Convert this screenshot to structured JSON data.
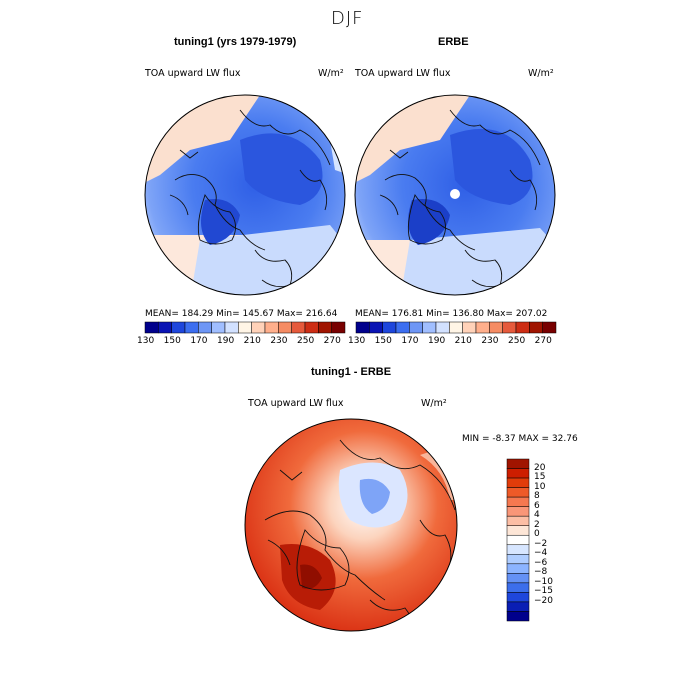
{
  "figure": {
    "title": "DJF"
  },
  "panels": [
    {
      "heading": "tuning1 (yrs 1979-1979)",
      "variable": "TOA upward LW flux",
      "units": "W/m²",
      "stats": "MEAN= 184.29     Min= 145.67     Max= 216.64"
    },
    {
      "heading": "ERBE",
      "variable": "TOA upward LW flux",
      "units": "W/m²",
      "stats": "MEAN= 176.81     Min= 136.80     Max= 207.02"
    }
  ],
  "main_colorbar": {
    "labels": [
      "130",
      "150",
      "170",
      "190",
      "210",
      "230",
      "250",
      "270"
    ],
    "colors": [
      "#00008c",
      "#0a14b4",
      "#1e46dc",
      "#3c6ef0",
      "#6e96f5",
      "#a0beff",
      "#d2e1ff",
      "#fff5e6",
      "#ffd2b9",
      "#ffaf8c",
      "#f58c64",
      "#e65a3c",
      "#cd2d14",
      "#a01400",
      "#780000"
    ]
  },
  "difference": {
    "heading": "tuning1 - ERBE",
    "variable": "TOA upward LW flux",
    "units": "W/m²",
    "minmax": "MIN =   -8.37  MAX =   32.76",
    "colorbar_labels": [
      "20",
      "15",
      "10",
      "8",
      "6",
      "4",
      "2",
      "0",
      "−2",
      "−4",
      "−6",
      "−8",
      "−10",
      "−15",
      "−20"
    ],
    "colorbar_colors": [
      "#a01400",
      "#cd1e00",
      "#e13c0a",
      "#ee5a28",
      "#f57850",
      "#f99678",
      "#fcbea5",
      "#fde6d7",
      "#ffffff",
      "#d7e6ff",
      "#afcdff",
      "#8cb4ff",
      "#6491f5",
      "#3c6eeb",
      "#1e46dc",
      "#0a1eb4",
      "#00008c"
    ]
  }
}
